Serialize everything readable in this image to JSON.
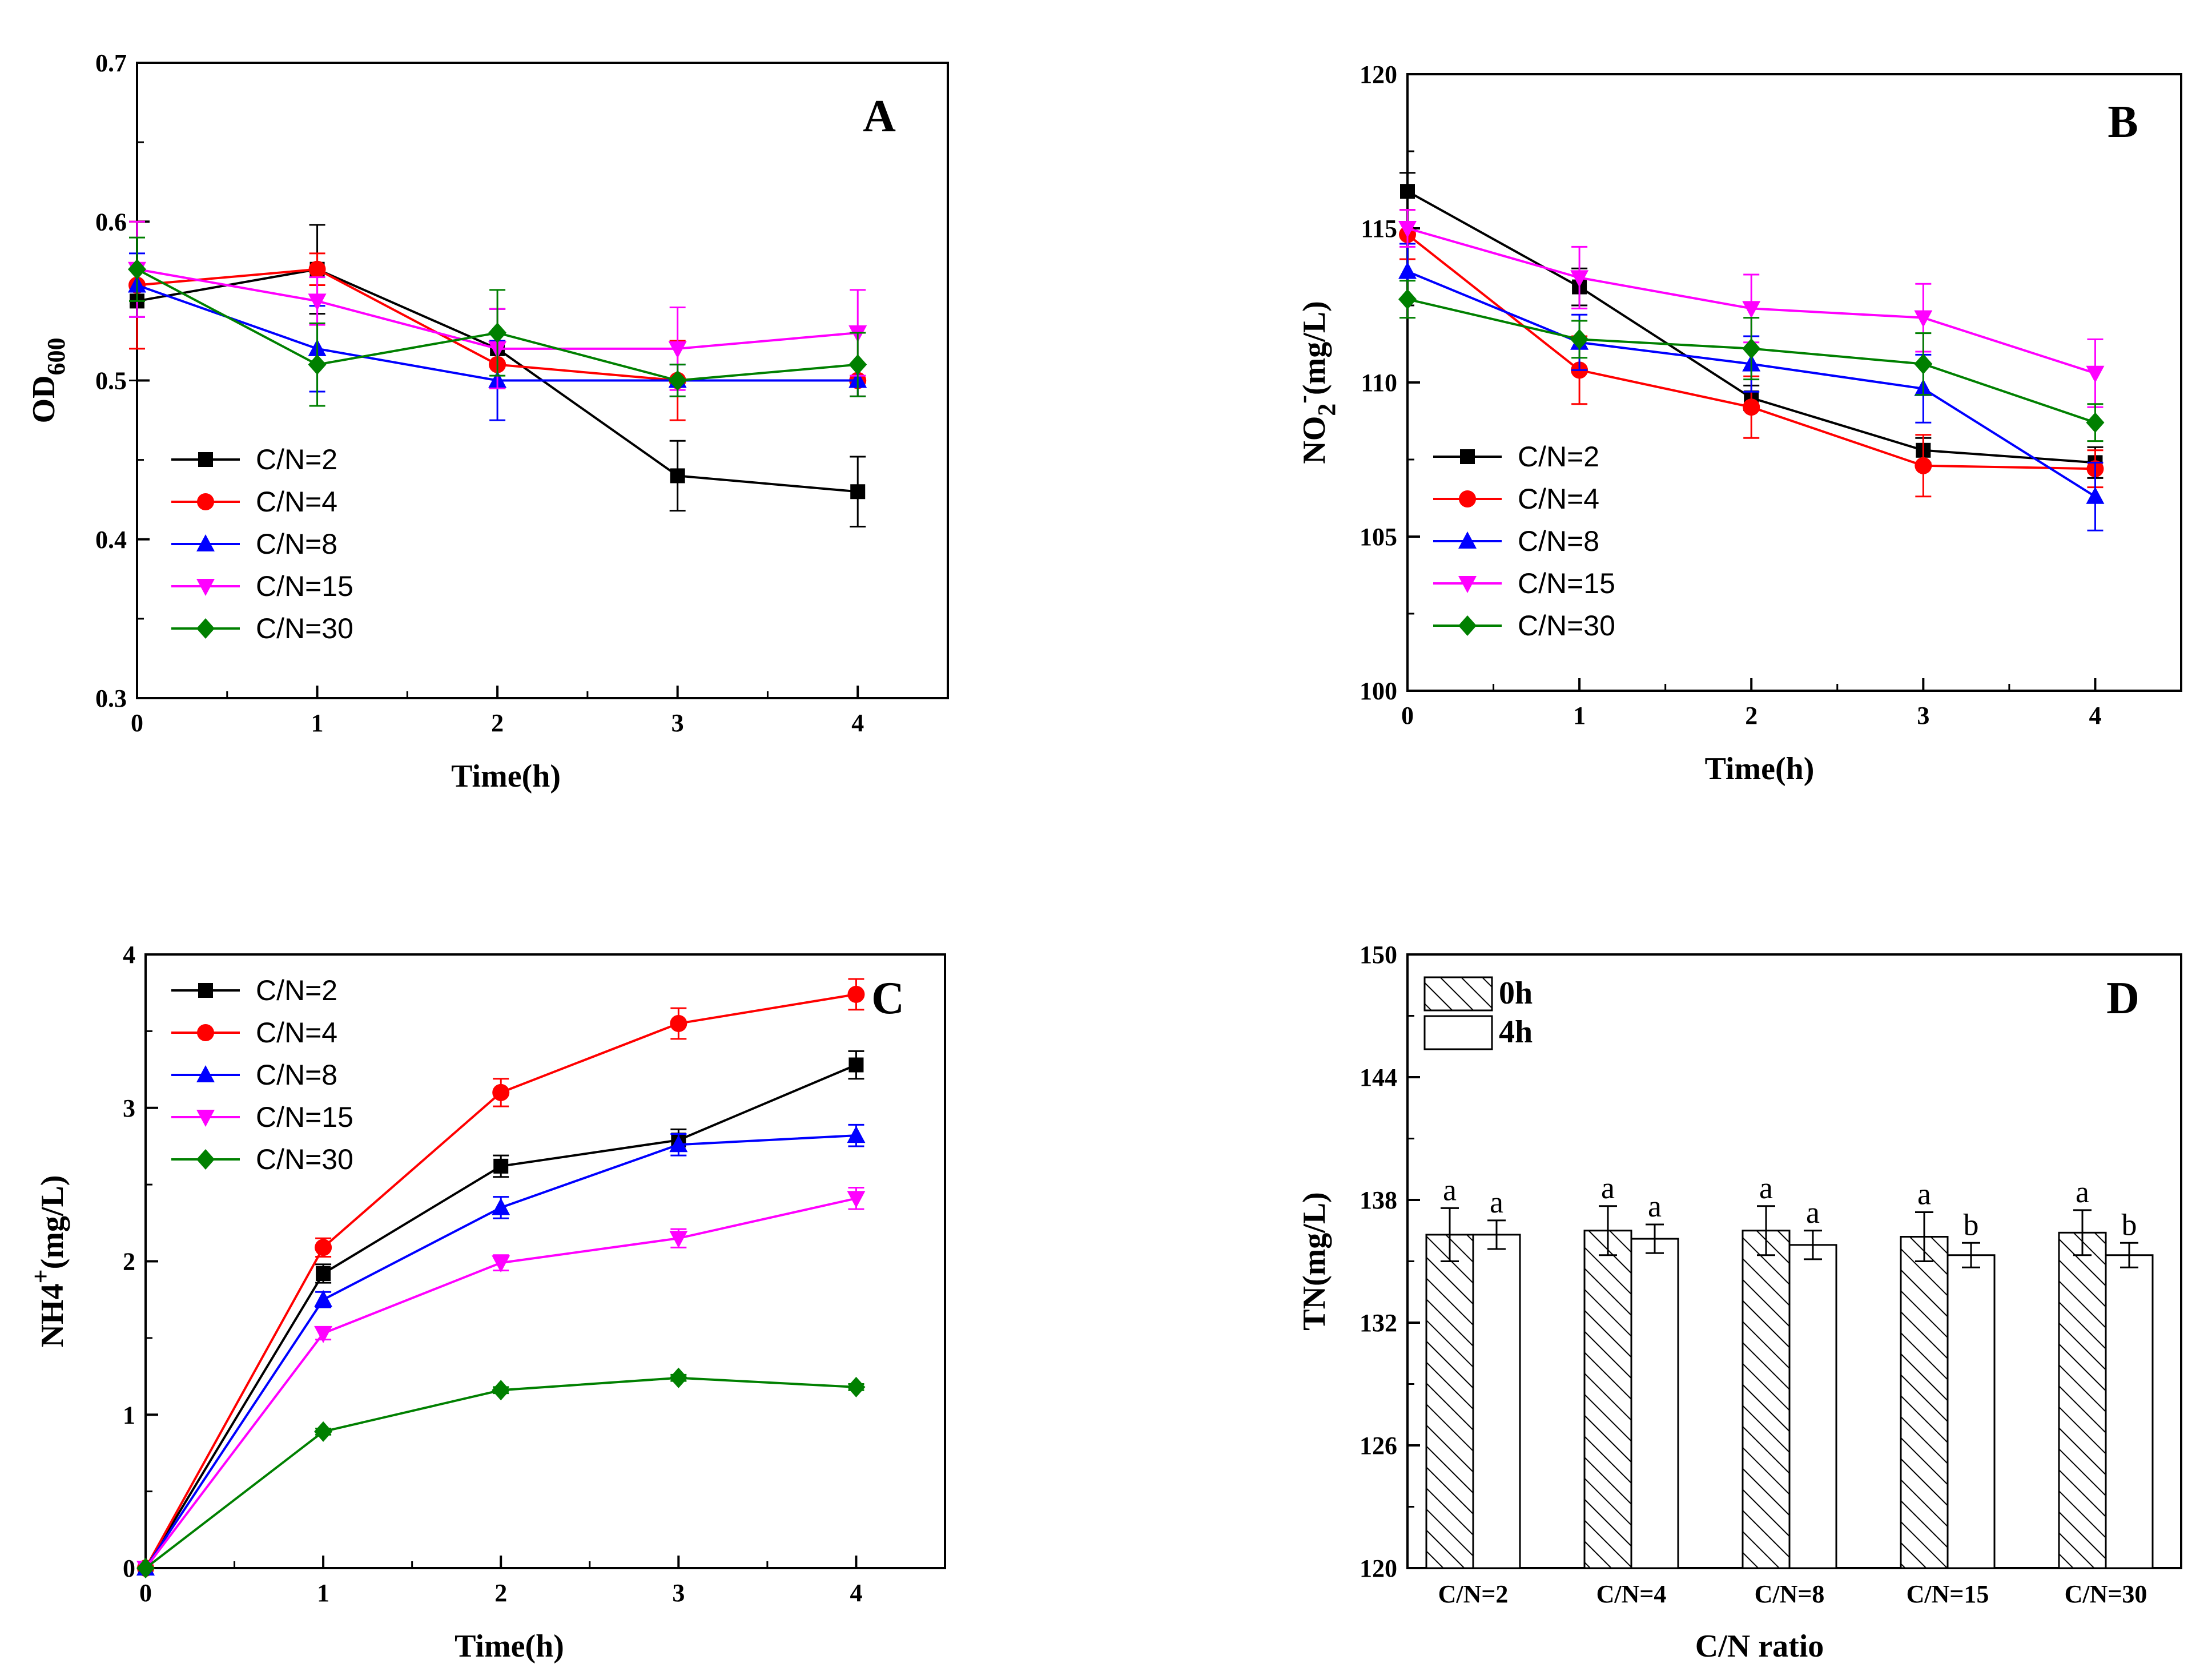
{
  "chart_data": [
    {
      "panel": "A",
      "type": "line",
      "xlabel": "Time(h)",
      "ylabel": "OD600",
      "ylabel_main": "OD",
      "ylabel_sub": "600",
      "xlim": [
        0,
        4.5
      ],
      "ylim": [
        0.3,
        0.7
      ],
      "xticks": [
        0,
        1,
        2,
        3,
        4
      ],
      "yticks": [
        0.3,
        0.4,
        0.5,
        0.6,
        0.7
      ],
      "ytick_labels": [
        "0.3",
        "0.4",
        "0.5",
        "0.6",
        "0.7"
      ],
      "x": [
        0,
        1,
        2,
        3,
        4
      ],
      "series": [
        {
          "name": "C/N=2",
          "color": "#000000",
          "marker": "square",
          "values": [
            0.55,
            0.57,
            0.52,
            0.44,
            0.43
          ],
          "errors": [
            0.05,
            0.028,
            0.025,
            0.022,
            0.022
          ]
        },
        {
          "name": "C/N=4",
          "color": "#ff0000",
          "marker": "circle",
          "values": [
            0.56,
            0.57,
            0.51,
            0.5,
            0.5
          ],
          "errors": [
            0.04,
            0.01,
            0.015,
            0.025,
            0.01
          ]
        },
        {
          "name": "C/N=8",
          "color": "#0000ff",
          "marker": "triangle-up",
          "values": [
            0.56,
            0.52,
            0.5,
            0.5,
            0.5
          ],
          "errors": [
            0.02,
            0.027,
            0.025,
            0.01,
            0.01
          ]
        },
        {
          "name": "C/N=15",
          "color": "#ff00ff",
          "marker": "triangle-down",
          "values": [
            0.57,
            0.55,
            0.52,
            0.52,
            0.53
          ],
          "errors": [
            0.03,
            0.015,
            0.025,
            0.026,
            0.027
          ]
        },
        {
          "name": "C/N=30",
          "color": "#008000",
          "marker": "diamond",
          "values": [
            0.57,
            0.51,
            0.53,
            0.5,
            0.51
          ],
          "errors": [
            0.02,
            0.026,
            0.027,
            0.01,
            0.02
          ]
        }
      ],
      "legend": "left-bottom"
    },
    {
      "panel": "B",
      "type": "line",
      "xlabel": "Time(h)",
      "ylabel": "NO2-(mg/L)",
      "ylabel_main": "NO",
      "ylabel_sub": "2",
      "ylabel_sup": "-",
      "ylabel_unit": "(mg/L)",
      "xlim": [
        0,
        4.5
      ],
      "ylim": [
        100,
        120
      ],
      "xticks": [
        0,
        1,
        2,
        3,
        4
      ],
      "yticks": [
        100,
        105,
        110,
        115,
        120
      ],
      "ytick_labels": [
        "100",
        "105",
        "110",
        "115",
        "120"
      ],
      "x": [
        0,
        1,
        2,
        3,
        4
      ],
      "series": [
        {
          "name": "C/N=2",
          "color": "#000000",
          "marker": "square",
          "values": [
            116.2,
            113.1,
            109.5,
            107.8,
            107.4
          ],
          "errors": [
            0.6,
            0.6,
            0.4,
            0.4,
            0.5
          ]
        },
        {
          "name": "C/N=4",
          "color": "#ff0000",
          "marker": "circle",
          "values": [
            114.8,
            110.4,
            109.2,
            107.3,
            107.2
          ],
          "errors": [
            0.8,
            1.1,
            1.0,
            1.0,
            0.6
          ]
        },
        {
          "name": "C/N=8",
          "color": "#0000ff",
          "marker": "triangle-up",
          "values": [
            113.6,
            111.3,
            110.6,
            109.8,
            106.3
          ],
          "errors": [
            0.9,
            0.9,
            0.9,
            1.1,
            1.1
          ]
        },
        {
          "name": "C/N=15",
          "color": "#ff00ff",
          "marker": "triangle-down",
          "values": [
            115.0,
            113.4,
            112.4,
            112.1,
            110.3
          ],
          "errors": [
            0.6,
            1.0,
            1.1,
            1.1,
            1.1
          ]
        },
        {
          "name": "C/N=30",
          "color": "#008000",
          "marker": "diamond",
          "values": [
            112.7,
            111.4,
            111.1,
            110.6,
            108.7
          ],
          "errors": [
            0.6,
            0.6,
            1.0,
            1.0,
            0.6
          ]
        }
      ],
      "legend": "left-bottom"
    },
    {
      "panel": "C",
      "type": "line",
      "xlabel": "Time(h)",
      "ylabel": "NH4+(mg/L)",
      "ylabel_main": "NH4",
      "ylabel_sup": "+",
      "ylabel_unit": "(mg/L)",
      "xlim": [
        0,
        4.5
      ],
      "ylim": [
        0,
        4
      ],
      "xticks": [
        0,
        1,
        2,
        3,
        4
      ],
      "yticks": [
        0,
        1,
        2,
        3,
        4
      ],
      "ytick_labels": [
        "0",
        "1",
        "2",
        "3",
        "4"
      ],
      "x": [
        0,
        1,
        2,
        3,
        4
      ],
      "series": [
        {
          "name": "C/N=2",
          "color": "#000000",
          "marker": "square",
          "values": [
            0,
            1.92,
            2.62,
            2.79,
            3.28
          ],
          "errors": [
            0,
            0.06,
            0.07,
            0.07,
            0.09
          ]
        },
        {
          "name": "C/N=4",
          "color": "#ff0000",
          "marker": "circle",
          "values": [
            0,
            2.09,
            3.1,
            3.55,
            3.74
          ],
          "errors": [
            0,
            0.06,
            0.09,
            0.1,
            0.1
          ]
        },
        {
          "name": "C/N=8",
          "color": "#0000ff",
          "marker": "triangle-up",
          "values": [
            0,
            1.75,
            2.35,
            2.76,
            2.82
          ],
          "errors": [
            0,
            0.05,
            0.07,
            0.07,
            0.07
          ]
        },
        {
          "name": "C/N=15",
          "color": "#ff00ff",
          "marker": "triangle-down",
          "values": [
            0,
            1.53,
            1.99,
            2.15,
            2.41
          ],
          "errors": [
            0,
            0.04,
            0.05,
            0.06,
            0.07
          ]
        },
        {
          "name": "C/N=30",
          "color": "#008000",
          "marker": "diamond",
          "values": [
            0,
            0.89,
            1.16,
            1.24,
            1.18
          ],
          "errors": [
            0,
            0.02,
            0.02,
            0.02,
            0.02
          ]
        }
      ],
      "legend": "top-left"
    },
    {
      "panel": "D",
      "type": "bar",
      "xlabel": "C/N ratio",
      "ylabel": "TN(mg/L)",
      "categories": [
        "C/N=2",
        "C/N=4",
        "C/N=8",
        "C/N=15",
        "C/N=30"
      ],
      "ylim": [
        120,
        150
      ],
      "yticks": [
        120,
        126,
        132,
        138,
        144,
        150
      ],
      "ytick_labels": [
        "120",
        "126",
        "132",
        "138",
        "144",
        "150"
      ],
      "series": [
        {
          "name": "0h",
          "pattern": "hatched",
          "values": [
            136.3,
            136.5,
            136.5,
            136.2,
            136.4
          ],
          "errors": [
            1.3,
            1.2,
            1.2,
            1.2,
            1.1
          ],
          "letters": [
            "a",
            "a",
            "a",
            "a",
            "a"
          ]
        },
        {
          "name": "4h",
          "pattern": "open",
          "values": [
            136.3,
            136.1,
            135.8,
            135.3,
            135.3
          ],
          "errors": [
            0.7,
            0.7,
            0.7,
            0.6,
            0.6
          ],
          "letters": [
            "a",
            "a",
            "a",
            "b",
            "b"
          ]
        }
      ],
      "legend": "top-left"
    }
  ]
}
